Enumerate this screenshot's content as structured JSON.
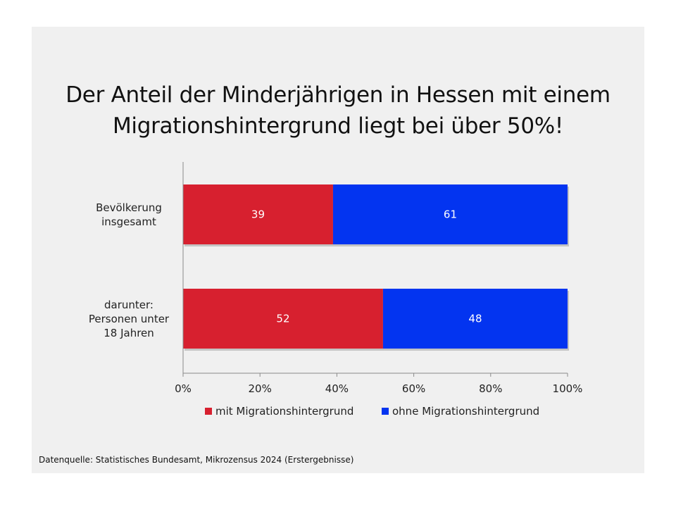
{
  "title": {
    "line1": "Der Anteil der Minderjährigen in Hessen mit einem",
    "line2": "Migrationshintergrund liegt bei über 50%!"
  },
  "source": "Datenquelle: Statistisches Bundesamt, Mikrozensus 2024 (Erstergebnisse)",
  "colors": {
    "mit": "#d7202f",
    "ohne": "#0334f0",
    "axis": "#8a8a8a"
  },
  "chart_data": {
    "type": "bar",
    "orientation": "horizontal",
    "stacked": "percent",
    "categories": [
      [
        "Bevölkerung",
        "insgesamt"
      ],
      [
        "darunter:",
        "Personen unter",
        "18 Jahren"
      ]
    ],
    "series": [
      {
        "name": "mit Migrationshintergrund",
        "values": [
          39,
          52
        ]
      },
      {
        "name": "ohne Migrationshintergrund",
        "values": [
          61,
          48
        ]
      }
    ],
    "xlim": [
      0,
      100
    ],
    "xticks": [
      "0%",
      "20%",
      "40%",
      "60%",
      "80%",
      "100%"
    ],
    "legend": "bottom",
    "grid": false,
    "data_labels": true
  }
}
